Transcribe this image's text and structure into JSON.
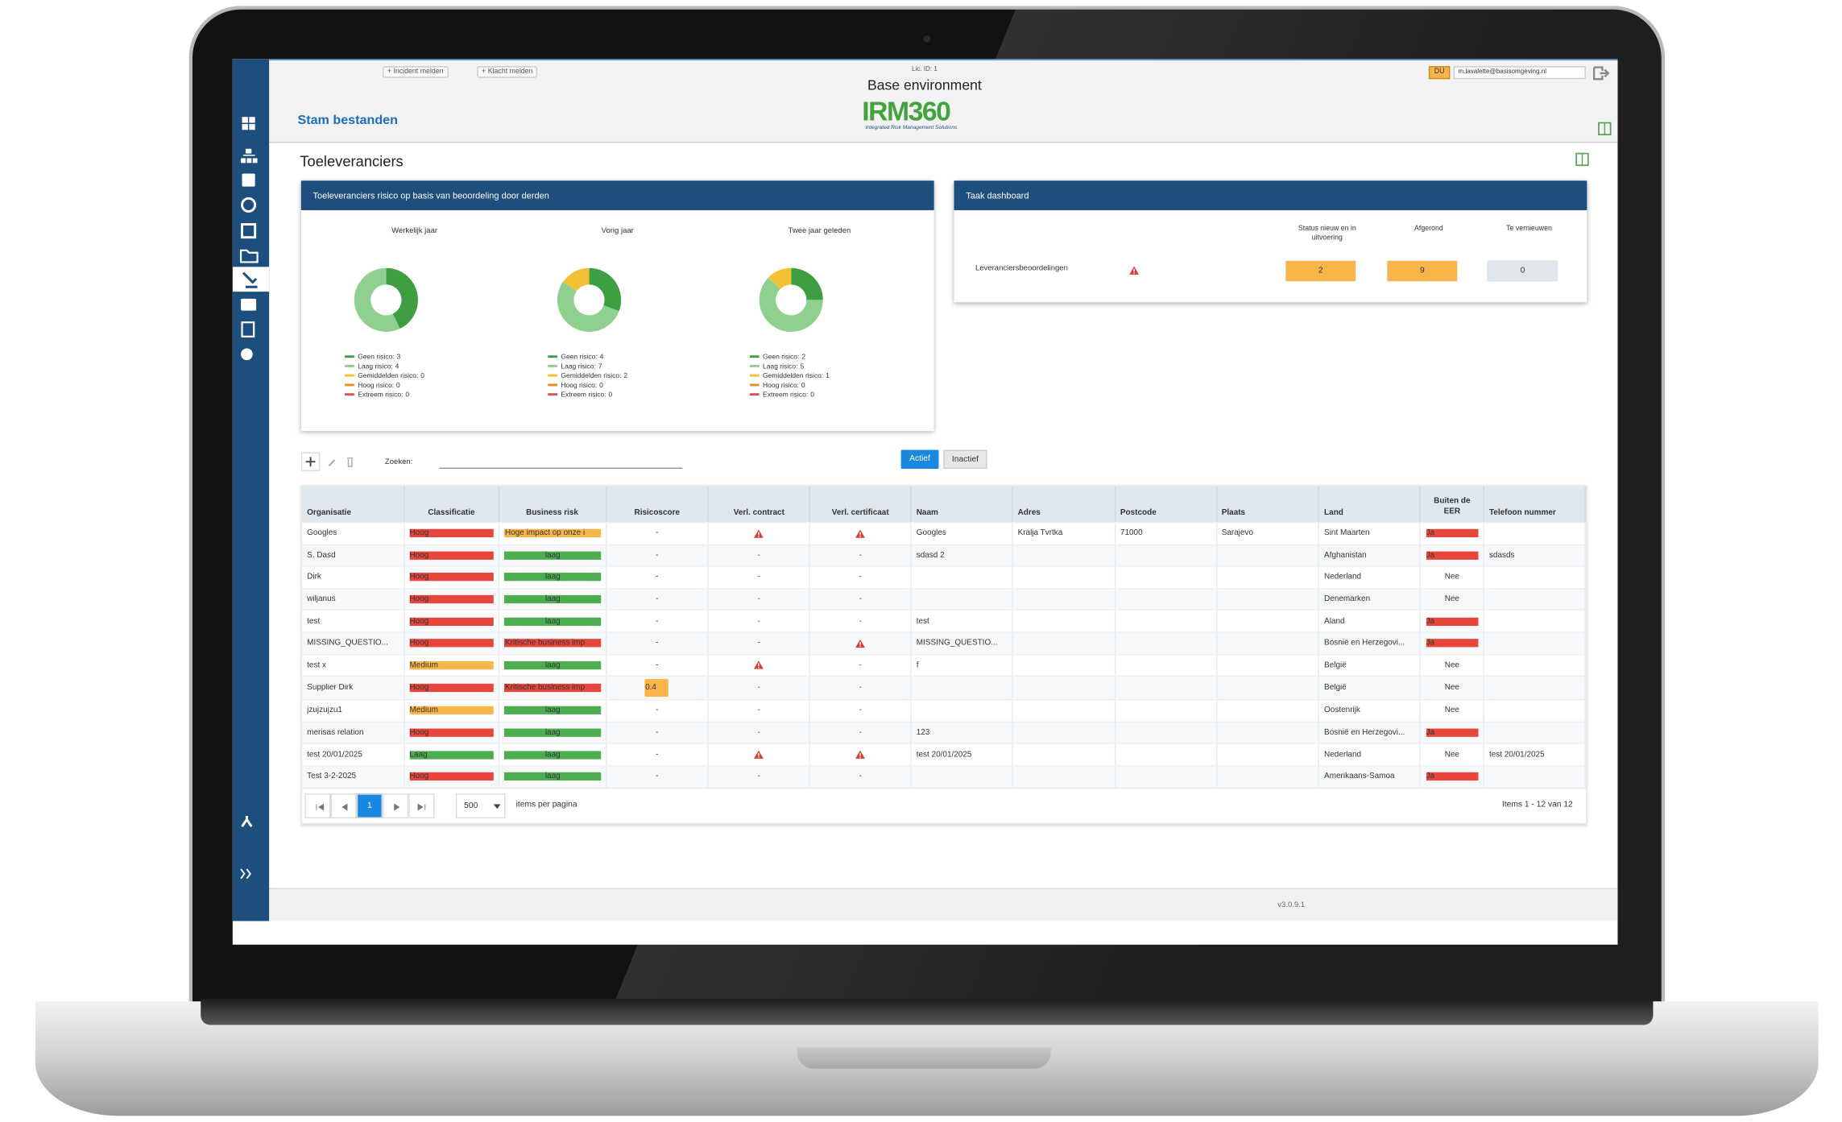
{
  "header": {
    "buttons": [
      "+ Incident melden",
      "+ Klacht melden"
    ],
    "license": "Lic. ID: 1",
    "environment": "Base environment",
    "logo": "IRM360",
    "logo_tagline": "Integrated Risk Management Solutions",
    "section": "Stam bestanden",
    "user_initials": "DU",
    "user_email": "m.lavalette@basisomgeving.nl"
  },
  "page_title": "Toeleveranciers",
  "risk_panel": {
    "title": "Toeleveranciers risico op basis van beoordeling door derden",
    "categories": [
      "Geen risico:",
      "Laag risico:",
      "Gemiddelden risico:",
      "Hoog risico:",
      "Extreem risico:"
    ],
    "colors": [
      "#3e9e42",
      "#8fd08f",
      "#f4c136",
      "#f08c2e",
      "#d9534f"
    ],
    "charts": [
      {
        "title": "Werkelijk jaar",
        "values": [
          3,
          4,
          0,
          0,
          0
        ]
      },
      {
        "title": "Vorig jaar",
        "values": [
          4,
          7,
          2,
          0,
          0
        ]
      },
      {
        "title": "Twee jaar geleden",
        "values": [
          2,
          5,
          1,
          0,
          0
        ]
      }
    ]
  },
  "task_panel": {
    "title": "Taak dashboard",
    "columns": [
      "Status nieuw en in uitvoering",
      "Afgerond",
      "Te vernieuwen"
    ],
    "colors": [
      "#f9b54a",
      "#f9b54a",
      "#dfe6ee"
    ],
    "rows": [
      {
        "label": "Leveranciersbeoordelingen",
        "values": [
          2,
          9,
          0
        ]
      }
    ]
  },
  "toolbar": {
    "search_label": "Zoeken:",
    "tabs": [
      "Actief",
      "Inactief"
    ]
  },
  "table": {
    "badge_colors": {
      "red": "#e8453c",
      "orange": "#f9b54a",
      "green": "#4cae50"
    },
    "columns": [
      "Organisatie",
      "Classificatie",
      "Business risk",
      "Risicoscore",
      "Verl. contract",
      "Verl. certificaat",
      "Naam",
      "Adres",
      "Postcode",
      "Plaats",
      "Land",
      "Buiten de EER",
      "Telefoon nummer"
    ],
    "rows": [
      [
        "Googles",
        {
          "text": "Hoog",
          "badge": "red"
        },
        {
          "text": "Hoge impact op onze i",
          "badge": "orange"
        },
        "-",
        true,
        true,
        "Googles",
        "Kralja Tvrtka",
        "71000",
        "Sarajevo",
        "Sint Maarten",
        {
          "text": "Ja",
          "badge": "red"
        },
        null
      ],
      [
        "S. Dasd",
        {
          "text": "Hoog",
          "badge": "red"
        },
        {
          "text": "laag",
          "badge": "green"
        },
        "-",
        "-",
        "-",
        "sdasd 2",
        null,
        null,
        null,
        "Afghanistan",
        {
          "text": "Ja",
          "badge": "red"
        },
        "sdasds"
      ],
      [
        "Dirk",
        {
          "text": "Hoog",
          "badge": "red"
        },
        {
          "text": "laag",
          "badge": "green"
        },
        "-",
        "-",
        "-",
        null,
        null,
        null,
        null,
        "Nederland",
        "Nee",
        null
      ],
      [
        "wiljanus",
        {
          "text": "Hoog",
          "badge": "red"
        },
        {
          "text": "laag",
          "badge": "green"
        },
        "-",
        "-",
        "-",
        null,
        null,
        null,
        null,
        "Denemarken",
        "Nee",
        null
      ],
      [
        "test",
        {
          "text": "Hoog",
          "badge": "red"
        },
        {
          "text": "laag",
          "badge": "green"
        },
        "-",
        "-",
        "-",
        "test",
        null,
        null,
        null,
        "Åland",
        {
          "text": "Ja",
          "badge": "red"
        },
        null
      ],
      [
        "MISSING_QUESTIO...",
        {
          "text": "Hoog",
          "badge": "red"
        },
        {
          "text": "Kritische business imp",
          "badge": "red"
        },
        "-",
        "-",
        true,
        "MISSING_QUESTIO...",
        null,
        null,
        null,
        "Bosnië en Herzegovi...",
        {
          "text": "Ja",
          "badge": "red"
        },
        null
      ],
      [
        "test x",
        {
          "text": "Medium",
          "badge": "orange"
        },
        {
          "text": "laag",
          "badge": "green"
        },
        "-",
        true,
        "-",
        "f",
        null,
        null,
        null,
        "België",
        "Nee",
        null
      ],
      [
        "Supplier Dirk",
        {
          "text": "Hoog",
          "badge": "red"
        },
        {
          "text": "Kritische business imp",
          "badge": "red"
        },
        {
          "text": 0.4,
          "badge": "orange"
        },
        "-",
        "-",
        null,
        null,
        null,
        null,
        "België",
        "Nee",
        null
      ],
      [
        "jzujzujzu1",
        {
          "text": "Medium",
          "badge": "orange"
        },
        {
          "text": "laag",
          "badge": "green"
        },
        "-",
        "-",
        "-",
        null,
        null,
        null,
        null,
        "Oostenrijk",
        "Nee",
        null
      ],
      [
        "merisas relation",
        {
          "text": "Hoog",
          "badge": "red"
        },
        {
          "text": "laag",
          "badge": "green"
        },
        "-",
        "-",
        "-",
        "123",
        null,
        null,
        null,
        "Bosnië en Herzegovi...",
        {
          "text": "Ja",
          "badge": "red"
        },
        null
      ],
      [
        "test 20/01/2025",
        {
          "text": "Laag",
          "badge": "green"
        },
        {
          "text": "laag",
          "badge": "green"
        },
        "-",
        true,
        true,
        "test 20/01/2025",
        null,
        null,
        null,
        "Nederland",
        "Nee",
        "test 20/01/2025"
      ],
      [
        "Test 3-2-2025",
        {
          "text": "Hoog",
          "badge": "red"
        },
        {
          "text": "laag",
          "badge": "green"
        },
        "-",
        "-",
        "-",
        null,
        null,
        null,
        null,
        "Amerikaans-Samoa",
        {
          "text": "Ja",
          "badge": "red"
        },
        null
      ]
    ]
  },
  "pager": {
    "page": "1",
    "page_size": "500",
    "per_page_label": "items per pagina",
    "summary": "Items 1 - 12 van 12"
  },
  "footer": {
    "version": "v3.0.9.1"
  }
}
